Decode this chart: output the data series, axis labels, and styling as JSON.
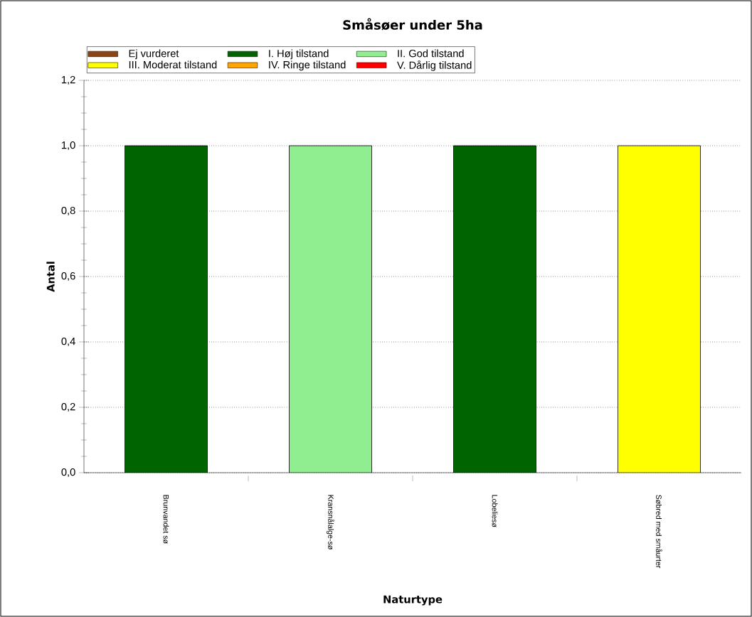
{
  "chart_data": {
    "type": "bar",
    "title": "Småsøer under 5ha",
    "xlabel": "Naturtype",
    "ylabel": "Antal",
    "categories": [
      "Brunvandet sø",
      "Kransnålalge-sø",
      "Lobeliesø",
      "Søbred med småurter"
    ],
    "series": [
      {
        "name": "Ej vurderet",
        "color": "#8b4513",
        "values": [
          null,
          null,
          null,
          null
        ]
      },
      {
        "name": "I. Høj tilstand",
        "color": "#006400",
        "values": [
          1.0,
          null,
          1.0,
          null
        ]
      },
      {
        "name": "II. God tilstand",
        "color": "#90ee90",
        "values": [
          null,
          1.0,
          null,
          null
        ]
      },
      {
        "name": "III. Moderat tilstand",
        "color": "#ffff00",
        "values": [
          null,
          null,
          null,
          1.0
        ]
      },
      {
        "name": "IV. Ringe tilstand",
        "color": "#ffa500",
        "values": [
          null,
          null,
          null,
          null
        ]
      },
      {
        "name": "V. Dårlig tilstand",
        "color": "#ff0000",
        "values": [
          null,
          null,
          null,
          null
        ]
      }
    ],
    "ylim": [
      0,
      1.2
    ],
    "yticks": [
      {
        "value": 0,
        "label": "0,0"
      },
      {
        "value": 0.2,
        "label": "0,2"
      },
      {
        "value": 0.4,
        "label": "0,4"
      },
      {
        "value": 0.6,
        "label": "0,6"
      },
      {
        "value": 0.8,
        "label": "0,8"
      },
      {
        "value": 1.0,
        "label": "1,0"
      },
      {
        "value": 1.2,
        "label": "1,2"
      }
    ],
    "grid": "y",
    "legend": "top"
  }
}
